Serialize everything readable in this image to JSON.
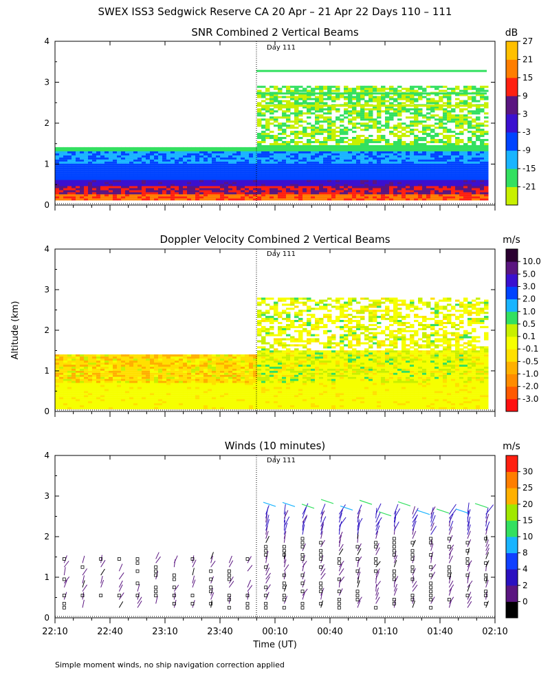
{
  "figure": {
    "title": "SWEX ISS3 Sedgwick Reserve CA  20 Apr – 21 Apr 22 Days 110 – 111",
    "ylabel": "Altitude (km)",
    "xlabel": "Time (UT)",
    "footnote": "Simple moment winds, no ship navigation correction applied",
    "day_marker": "Day 111"
  },
  "chart_data": [
    {
      "type": "heatmap",
      "title": "SNR Combined 2 Vertical Beams",
      "unit": "dB",
      "xlabel": "Time (UT)",
      "ylabel": "Altitude (km)",
      "x_ticks": [
        "22:10",
        "22:40",
        "23:10",
        "23:40",
        "00:10",
        "00:40",
        "01:10",
        "01:40",
        "02:10"
      ],
      "ylim": [
        0,
        4
      ],
      "y_ticks": [
        0,
        1,
        2,
        3,
        4
      ],
      "colorbar_ticks": [
        "-21",
        "-15",
        "-9",
        "-3",
        "3",
        "9",
        "15",
        "21",
        "27"
      ],
      "colorbar_colors": [
        "#c8f000",
        "#33e060",
        "#19b4ff",
        "#0044ff",
        "#3a10d0",
        "#5a1580",
        "#ff2010",
        "#ff7e00",
        "#ffc000"
      ],
      "layers": [
        {
          "x": "22:10 – 00:05",
          "altitude_km": [
            0.0,
            0.15
          ],
          "snr_db": 15
        },
        {
          "x": "22:10 – 00:05",
          "altitude_km": [
            0.15,
            0.45
          ],
          "snr_db": 9
        },
        {
          "x": "22:10 – 00:05",
          "altitude_km": [
            0.45,
            0.75
          ],
          "snr_db": 0
        },
        {
          "x": "22:10 – 00:05",
          "altitude_km": [
            0.75,
            1.3
          ],
          "snr_db": -6
        },
        {
          "x": "22:10 – 00:05",
          "altitude_km": [
            1.3,
            1.4
          ],
          "snr_db": -15
        },
        {
          "x": "00:05 – 02:05",
          "altitude_km": [
            0.15,
            0.6
          ],
          "snr_db": 6
        },
        {
          "x": "00:05 – 02:05",
          "altitude_km": [
            0.6,
            1.4
          ],
          "snr_db": -8
        },
        {
          "x": "00:05 – 02:05",
          "altitude_km": [
            1.4,
            2.9
          ],
          "snr_db": -18
        }
      ]
    },
    {
      "type": "heatmap",
      "title": "Doppler Velocity Combined 2 Vertical Beams",
      "unit": "m/s",
      "xlabel": "Time (UT)",
      "ylabel": "Altitude (km)",
      "x_ticks": [
        "22:10",
        "22:40",
        "23:10",
        "23:40",
        "00:10",
        "00:40",
        "01:10",
        "01:40",
        "02:10"
      ],
      "ylim": [
        0,
        4
      ],
      "y_ticks": [
        0,
        1,
        2,
        3,
        4
      ],
      "colorbar_ticks": [
        "-3.0",
        "-2.0",
        "-1.0",
        "-0.5",
        "-0.1",
        "0.1",
        "0.5",
        "1.0",
        "2.0",
        "3.0",
        "5.0",
        "10.0"
      ],
      "colorbar_colors": [
        "#ff1010",
        "#ff5a00",
        "#ff8c00",
        "#ffb000",
        "#ffe000",
        "#f6ff00",
        "#c8f000",
        "#33e060",
        "#19b4ff",
        "#0044ff",
        "#3a10d0",
        "#5a1580",
        "#2a0030"
      ],
      "layers": [
        {
          "x": "22:10 – 00:05",
          "altitude_km": [
            0.05,
            0.7
          ],
          "velocity_ms": -0.05
        },
        {
          "x": "22:10 – 00:05",
          "altitude_km": [
            0.7,
            1.4
          ],
          "velocity_ms": -0.3
        },
        {
          "x": "00:05 – 02:05",
          "altitude_km": [
            0.05,
            1.2
          ],
          "velocity_ms": -0.05
        },
        {
          "x": "00:05 – 02:05",
          "altitude_km": [
            1.2,
            2.8
          ],
          "velocity_ms": -0.1
        }
      ]
    },
    {
      "type": "scatter",
      "title": "Winds (10 minutes)",
      "unit": "m/s",
      "xlabel": "Time (UT)",
      "ylabel": "Altitude (km)",
      "x_ticks": [
        "22:10",
        "22:40",
        "23:10",
        "23:40",
        "00:10",
        "00:40",
        "01:10",
        "01:40",
        "02:10"
      ],
      "ylim": [
        0,
        4
      ],
      "y_ticks": [
        0,
        1,
        2,
        3,
        4
      ],
      "colorbar_ticks": [
        "0",
        "2",
        "4",
        "8",
        "10",
        "15",
        "20",
        "25",
        "30"
      ],
      "colorbar_colors": [
        "#000000",
        "#5a1580",
        "#2a10c0",
        "#1040ff",
        "#19b4ff",
        "#33e060",
        "#a0e800",
        "#ffb000",
        "#ff7e00",
        "#ff2010"
      ],
      "calm_marker": "square",
      "layers": [
        {
          "x": "22:10 – 00:05",
          "altitude_km": [
            0.2,
            1.5
          ],
          "speed_ms": 1
        },
        {
          "x": "00:05 – 02:05",
          "altitude_km": [
            0.2,
            2.0
          ],
          "speed_ms": 2
        },
        {
          "x": "00:05 – 02:05",
          "altitude_km": [
            2.0,
            2.6
          ],
          "speed_ms": 5
        },
        {
          "x": "00:05 – 02:05",
          "altitude_km": [
            2.6,
            3.1
          ],
          "speed_ms": 12
        }
      ]
    }
  ]
}
